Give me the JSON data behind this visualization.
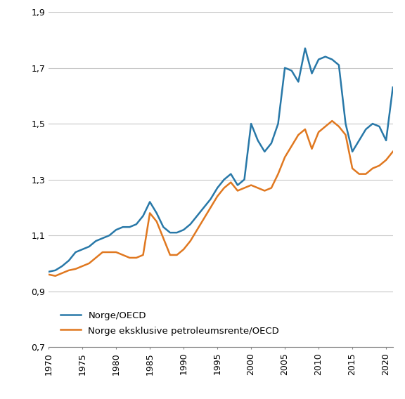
{
  "years": [
    1970,
    1971,
    1972,
    1973,
    1974,
    1975,
    1976,
    1977,
    1978,
    1979,
    1980,
    1981,
    1982,
    1983,
    1984,
    1985,
    1986,
    1987,
    1988,
    1989,
    1990,
    1991,
    1992,
    1993,
    1994,
    1995,
    1996,
    1997,
    1998,
    1999,
    2000,
    2001,
    2002,
    2003,
    2004,
    2005,
    2006,
    2007,
    2008,
    2009,
    2010,
    2011,
    2012,
    2013,
    2014,
    2015,
    2016,
    2017,
    2018,
    2019,
    2020,
    2021
  ],
  "norway_oecd": [
    0.97,
    0.975,
    0.99,
    1.01,
    1.04,
    1.05,
    1.06,
    1.08,
    1.09,
    1.1,
    1.12,
    1.13,
    1.13,
    1.14,
    1.17,
    1.22,
    1.18,
    1.13,
    1.11,
    1.11,
    1.12,
    1.14,
    1.17,
    1.2,
    1.23,
    1.27,
    1.3,
    1.32,
    1.28,
    1.3,
    1.5,
    1.44,
    1.4,
    1.43,
    1.5,
    1.7,
    1.69,
    1.65,
    1.77,
    1.68,
    1.73,
    1.74,
    1.73,
    1.71,
    1.5,
    1.4,
    1.44,
    1.48,
    1.5,
    1.49,
    1.44,
    1.63
  ],
  "norway_excl_oecd": [
    0.96,
    0.955,
    0.965,
    0.975,
    0.98,
    0.99,
    1.0,
    1.02,
    1.04,
    1.04,
    1.04,
    1.03,
    1.02,
    1.02,
    1.03,
    1.18,
    1.15,
    1.09,
    1.03,
    1.03,
    1.05,
    1.08,
    1.12,
    1.16,
    1.2,
    1.24,
    1.27,
    1.29,
    1.26,
    1.27,
    1.28,
    1.27,
    1.26,
    1.27,
    1.32,
    1.38,
    1.42,
    1.46,
    1.48,
    1.41,
    1.47,
    1.49,
    1.51,
    1.49,
    1.46,
    1.34,
    1.32,
    1.32,
    1.34,
    1.35,
    1.37,
    1.4
  ],
  "norway_color": "#2878a8",
  "excl_color": "#e07820",
  "ylim": [
    0.7,
    1.9
  ],
  "yticks": [
    0.7,
    0.9,
    1.1,
    1.3,
    1.5,
    1.7,
    1.9
  ],
  "xticks": [
    1970,
    1975,
    1980,
    1985,
    1990,
    1995,
    2000,
    2005,
    2010,
    2015,
    2020
  ],
  "legend_norway": "Norge/OECD",
  "legend_excl": "Norge eksklusive petroleumsrente/OECD",
  "linewidth": 1.8
}
